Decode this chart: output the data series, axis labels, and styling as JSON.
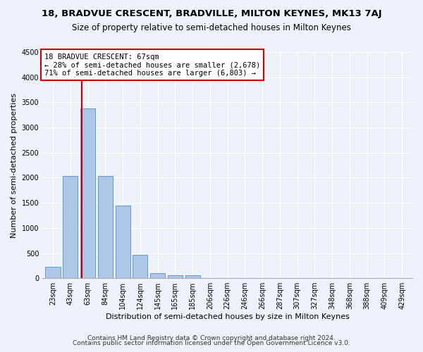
{
  "title1": "18, BRADVUE CRESCENT, BRADVILLE, MILTON KEYNES, MK13 7AJ",
  "title2": "Size of property relative to semi-detached houses in Milton Keynes",
  "xlabel": "Distribution of semi-detached houses by size in Milton Keynes",
  "ylabel": "Number of semi-detached properties",
  "categories": [
    "23sqm",
    "43sqm",
    "63sqm",
    "84sqm",
    "104sqm",
    "124sqm",
    "145sqm",
    "165sqm",
    "185sqm",
    "206sqm",
    "226sqm",
    "246sqm",
    "266sqm",
    "287sqm",
    "307sqm",
    "327sqm",
    "348sqm",
    "368sqm",
    "388sqm",
    "409sqm",
    "429sqm"
  ],
  "values": [
    230,
    2040,
    3380,
    2030,
    1440,
    460,
    100,
    60,
    60,
    0,
    0,
    0,
    0,
    0,
    0,
    0,
    0,
    0,
    0,
    0,
    0
  ],
  "bar_color": "#aec6e8",
  "bar_edge_color": "#5b9bd5",
  "vline_color": "#cc0000",
  "vline_bin": 2,
  "annotation_line1": "18 BRADVUE CRESCENT: 67sqm",
  "annotation_line2": "← 28% of semi-detached houses are smaller (2,678)",
  "annotation_line3": "71% of semi-detached houses are larger (6,803) →",
  "annotation_box_color": "#ffffff",
  "annotation_box_edge": "#cc0000",
  "ylim": [
    0,
    4500
  ],
  "yticks": [
    0,
    500,
    1000,
    1500,
    2000,
    2500,
    3000,
    3500,
    4000,
    4500
  ],
  "bg_color": "#eef2f9",
  "footer1": "Contains HM Land Registry data © Crown copyright and database right 2024.",
  "footer2": "Contains public sector information licensed under the Open Government Licence v3.0.",
  "title1_fontsize": 9.5,
  "title2_fontsize": 8.5,
  "xlabel_fontsize": 8,
  "ylabel_fontsize": 8,
  "tick_fontsize": 7,
  "footer_fontsize": 6.5,
  "annotation_fontsize": 7.5
}
